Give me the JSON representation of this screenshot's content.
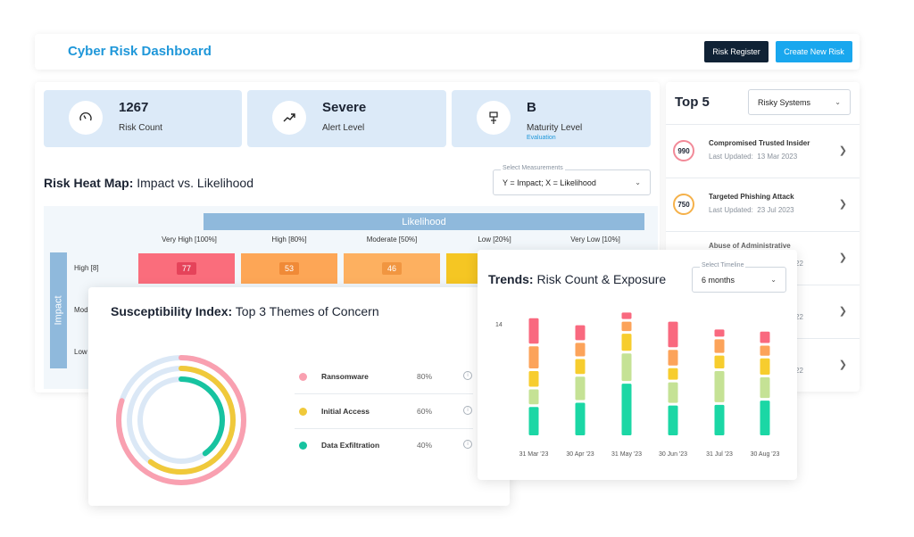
{
  "header": {
    "title": "Cyber Risk Dashboard",
    "risk_register_label": "Risk Register",
    "create_label": "Create New Risk"
  },
  "stats": [
    {
      "value": "1267",
      "label": "Risk Count",
      "sub": "",
      "icon": "gauge-icon"
    },
    {
      "value": "Severe",
      "label": "Alert Level",
      "sub": "",
      "icon": "trend-up-icon"
    },
    {
      "value": "B",
      "label": "Maturity Level",
      "sub": "Evaluation",
      "icon": "maturity-icon"
    }
  ],
  "heatmap": {
    "title_bold": "Risk Heat Map:",
    "title_rest": " Impact vs. Likelihood",
    "select_caption": "Select Measurements",
    "select_value": "Y = Impact; X = Likelihood",
    "likelihood_label": "Likelihood",
    "impact_label": "Impact",
    "columns": [
      "Very High [100%]",
      "High [80%]",
      "Moderate [50%]",
      "Low [20%]",
      "Very Low [10%]"
    ],
    "rows": [
      "High [8]",
      "Mod",
      "Low"
    ],
    "cells": [
      {
        "value": "77",
        "color": "#fa6d7c",
        "badge": "#e5435a"
      },
      {
        "value": "53",
        "color": "#fda656",
        "badge": "#f08a37"
      },
      {
        "value": "46",
        "color": "#fdb060",
        "badge": "#f19641"
      },
      {
        "value": "",
        "color": "#f5c623",
        "badge": "#f5c623"
      }
    ]
  },
  "top5": {
    "title": "Top 5",
    "select_value": "Risky Systems",
    "items": [
      {
        "score": "990",
        "name": "Compromised Trusted Insider",
        "updated_label": "Last Updated:",
        "updated": "13 Mar 2023",
        "color": "#f28a98"
      },
      {
        "score": "750",
        "name": "Targeted Phishing Attack",
        "updated_label": "Last Updated:",
        "updated": "23 Jul 2023",
        "color": "#f5b14a"
      },
      {
        "score": "",
        "name": "Abuse of Administrative",
        "updated_label": "",
        "updated": "22",
        "color": "#cccccc"
      },
      {
        "score": "",
        "name": "",
        "updated_label": "",
        "updated": "22",
        "color": "#cccccc"
      },
      {
        "score": "",
        "name": "",
        "updated_label": "",
        "updated": "22",
        "color": "#cccccc"
      }
    ]
  },
  "susceptibility": {
    "title_bold": "Susceptibility Index:",
    "title_rest": " Top 3 Themes of Concern",
    "themes": [
      {
        "name": "Ransomware",
        "percent": "80%",
        "value": 80,
        "color": "#f9a0b0"
      },
      {
        "name": "Initial Access",
        "percent": "60%",
        "value": 60,
        "color": "#f0c93a"
      },
      {
        "name": "Data Exfiltration",
        "percent": "40%",
        "value": 40,
        "color": "#17c3a0"
      }
    ]
  },
  "trends": {
    "title_bold": "Trends:",
    "title_rest": " Risk Count & Exposure",
    "select_caption": "Select Timeline",
    "select_value": "6 months",
    "colors": [
      "#f9697f",
      "#fca35a",
      "#f7cd2e",
      "#c5e295",
      "#1bd7a5"
    ]
  },
  "chart_data": {
    "type": "bar",
    "stacked": true,
    "categories": [
      "31 Mar '23",
      "30 Apr '23",
      "31 May '23",
      "30 Jun '23",
      "31 Jul '23",
      "30 Aug '23"
    ],
    "ytick_labels": [
      "14"
    ],
    "series": [
      {
        "values": [
          4.0,
          2.5,
          1.3,
          4.0,
          1.4,
          2.0
        ]
      },
      {
        "values": [
          3.5,
          2.3,
          1.7,
          2.6,
          2.3,
          1.8
        ]
      },
      {
        "values": [
          2.6,
          2.5,
          2.8,
          2.0,
          2.2,
          2.7
        ]
      },
      {
        "values": [
          2.5,
          3.7,
          4.3,
          3.3,
          4.8,
          3.3
        ]
      },
      {
        "values": [
          4.4,
          5.0,
          7.7,
          4.6,
          4.7,
          5.3
        ]
      }
    ]
  }
}
